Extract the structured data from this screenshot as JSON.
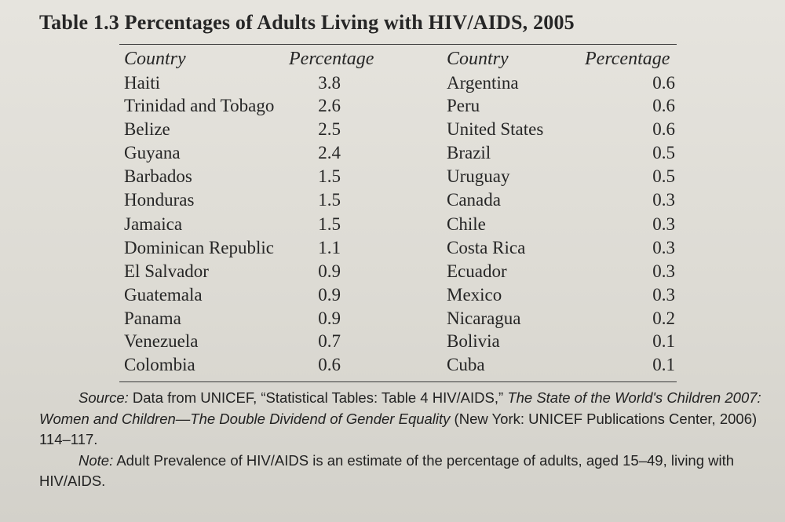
{
  "title": "Table 1.3 Percentages of Adults Living with HIV/AIDS, 2005",
  "columns": {
    "left_country": "Country",
    "left_percentage": "Percentage",
    "right_country": "Country",
    "right_percentage": "Percentage"
  },
  "left_rows": [
    {
      "country": "Haiti",
      "pct": "3.8"
    },
    {
      "country": "Trinidad and Tobago",
      "pct": "2.6"
    },
    {
      "country": "Belize",
      "pct": "2.5"
    },
    {
      "country": "Guyana",
      "pct": "2.4"
    },
    {
      "country": "Barbados",
      "pct": "1.5"
    },
    {
      "country": "Honduras",
      "pct": "1.5"
    },
    {
      "country": "Jamaica",
      "pct": "1.5"
    },
    {
      "country": "Dominican Republic",
      "pct": "1.1"
    },
    {
      "country": "El Salvador",
      "pct": "0.9"
    },
    {
      "country": "Guatemala",
      "pct": "0.9"
    },
    {
      "country": "Panama",
      "pct": "0.9"
    },
    {
      "country": "Venezuela",
      "pct": "0.7"
    },
    {
      "country": "Colombia",
      "pct": "0.6"
    }
  ],
  "right_rows": [
    {
      "country": "Argentina",
      "pct": "0.6"
    },
    {
      "country": "Peru",
      "pct": "0.6"
    },
    {
      "country": "United States",
      "pct": "0.6"
    },
    {
      "country": "Brazil",
      "pct": "0.5"
    },
    {
      "country": "Uruguay",
      "pct": "0.5"
    },
    {
      "country": "Canada",
      "pct": "0.3"
    },
    {
      "country": "Chile",
      "pct": "0.3"
    },
    {
      "country": "Costa Rica",
      "pct": "0.3"
    },
    {
      "country": "Ecuador",
      "pct": "0.3"
    },
    {
      "country": "Mexico",
      "pct": "0.3"
    },
    {
      "country": "Nicaragua",
      "pct": "0.2"
    },
    {
      "country": "Bolivia",
      "pct": "0.1"
    },
    {
      "country": "Cuba",
      "pct": "0.1"
    }
  ],
  "source": {
    "label": "Source:",
    "text1": " Data from UNICEF, “Statistical Tables: Table 4 HIV/AIDS,” ",
    "italic_title": "The State of the World's Children 2007: Women and Children—The Double Dividend of Gender Equality",
    "text2": " (New York: UNICEF Publications Center, 2006) 114–117."
  },
  "note": {
    "label": "Note:",
    "text": " Adult Prevalence of HIV/AIDS is an estimate of the percentage of adults, aged 15–49, living with HIV/AIDS."
  }
}
